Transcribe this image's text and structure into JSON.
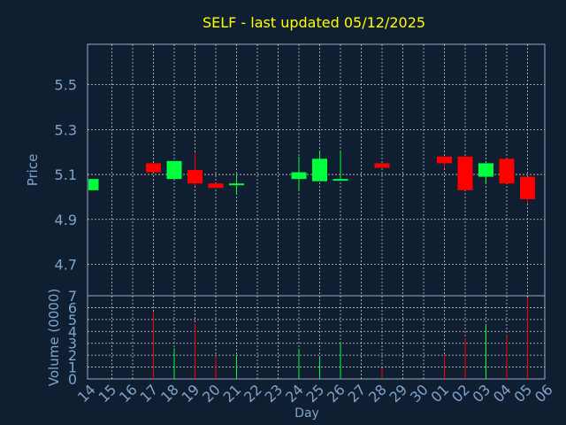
{
  "chart_data": {
    "type": "candlestick",
    "title": "SELF - last updated 05/12/2025",
    "xlabel": "Day",
    "price_panel": {
      "ylabel": "Price",
      "ylim": [
        4.56,
        5.68
      ],
      "yticks": [
        "4.7",
        "4.9",
        "5.1",
        "5.3",
        "5.5"
      ],
      "grid": true
    },
    "volume_panel": {
      "ylabel": "Volume (0000)",
      "ylim": [
        0,
        7
      ],
      "yticks": [
        "0",
        "1",
        "2",
        "3",
        "4",
        "5",
        "6",
        "7"
      ],
      "grid": true
    },
    "x_ticks": [
      "14",
      "15",
      "16",
      "17",
      "18",
      "19",
      "20",
      "21",
      "22",
      "23",
      "24",
      "25",
      "26",
      "27",
      "28",
      "29",
      "30",
      "01",
      "02",
      "03",
      "04",
      "05",
      "06"
    ],
    "candles": [
      {
        "x": 0,
        "open": 5.03,
        "close": 5.08,
        "high": 5.08,
        "low": 5.03,
        "volume": 0
      },
      {
        "x": 3,
        "open": 5.15,
        "close": 5.11,
        "high": 5.15,
        "low": 5.11,
        "volume": 5.6
      },
      {
        "x": 4,
        "open": 5.08,
        "close": 5.16,
        "high": 5.16,
        "low": 5.08,
        "volume": 2.6
      },
      {
        "x": 5,
        "open": 5.12,
        "close": 5.06,
        "high": 5.2,
        "low": 5.05,
        "volume": 4.6
      },
      {
        "x": 6,
        "open": 5.06,
        "close": 5.04,
        "high": 5.06,
        "low": 5.04,
        "volume": 1.9
      },
      {
        "x": 7,
        "open": 5.06,
        "close": 5.06,
        "high": 5.1,
        "low": 5.01,
        "volume": 2.0
      },
      {
        "x": 10,
        "open": 5.08,
        "close": 5.11,
        "high": 5.18,
        "low": 5.03,
        "volume": 2.5
      },
      {
        "x": 11,
        "open": 5.07,
        "close": 5.17,
        "high": 5.2,
        "low": 5.07,
        "volume": 1.8
      },
      {
        "x": 12,
        "open": 5.08,
        "close": 5.08,
        "high": 5.2,
        "low": 5.08,
        "volume": 3.1
      },
      {
        "x": 14,
        "open": 5.15,
        "close": 5.13,
        "high": 5.15,
        "low": 5.13,
        "volume": 0.9
      },
      {
        "x": 17,
        "open": 5.18,
        "close": 5.15,
        "high": 5.18,
        "low": 5.13,
        "volume": 2.0
      },
      {
        "x": 18,
        "open": 5.18,
        "close": 5.03,
        "high": 5.18,
        "low": 5.03,
        "volume": 3.4
      },
      {
        "x": 19,
        "open": 5.09,
        "close": 5.15,
        "high": 5.15,
        "low": 5.06,
        "volume": 4.6
      },
      {
        "x": 20,
        "open": 5.17,
        "close": 5.06,
        "high": 5.17,
        "low": 5.06,
        "volume": 3.7
      },
      {
        "x": 21,
        "open": 5.09,
        "close": 4.99,
        "high": 5.09,
        "low": 4.97,
        "volume": 6.8
      }
    ],
    "colors": {
      "up": "#00ff3c",
      "down": "#ff0000",
      "background": "#0f1e30",
      "title": "#ffff00",
      "axis_text": "#7fa4cc",
      "axis_line": "#8faec8",
      "grid": "#c8c8c8"
    }
  }
}
